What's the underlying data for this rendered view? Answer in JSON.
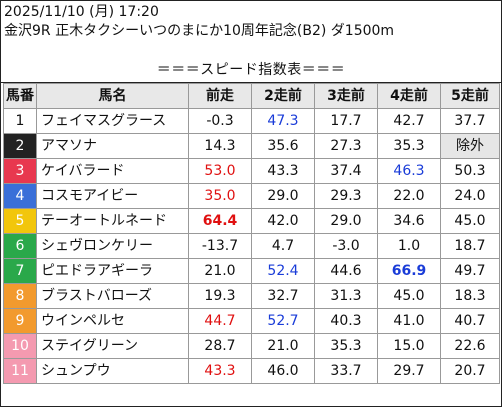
{
  "header": {
    "datetime": "2025/11/10 (月) 17:20",
    "race": "金沢9R 正木タクシーいつのまにか10周年記念(B2) ダ1500m"
  },
  "subtitle": "＝＝＝スピード指数表＝＝＝",
  "columns": [
    "馬番",
    "馬名",
    "前走",
    "2走前",
    "3走前",
    "4走前",
    "5走前"
  ],
  "rows": [
    {
      "num": "1",
      "color": "#ffffff",
      "text": "#111111",
      "name": "フェイマスグラース",
      "v": [
        [
          "-0.3",
          ""
        ],
        [
          "47.3",
          "blue"
        ],
        [
          "17.7",
          ""
        ],
        [
          "42.7",
          ""
        ],
        [
          "37.7",
          ""
        ]
      ]
    },
    {
      "num": "2",
      "color": "#222222",
      "text": "#ffffff",
      "name": "アマソナ",
      "v": [
        [
          "14.3",
          ""
        ],
        [
          "35.6",
          ""
        ],
        [
          "27.3",
          ""
        ],
        [
          "35.3",
          ""
        ],
        [
          "除外",
          "grey"
        ]
      ]
    },
    {
      "num": "3",
      "color": "#e8384f",
      "text": "#ffffff",
      "name": "ケイバラード",
      "v": [
        [
          "53.0",
          "red"
        ],
        [
          "43.3",
          ""
        ],
        [
          "37.4",
          ""
        ],
        [
          "46.3",
          "blue"
        ],
        [
          "50.3",
          ""
        ]
      ]
    },
    {
      "num": "4",
      "color": "#3a6fd8",
      "text": "#ffffff",
      "name": "コスモアイビー",
      "v": [
        [
          "35.0",
          "red"
        ],
        [
          "29.0",
          ""
        ],
        [
          "29.3",
          ""
        ],
        [
          "22.0",
          ""
        ],
        [
          "24.0",
          ""
        ]
      ]
    },
    {
      "num": "5",
      "color": "#f2c60c",
      "text": "#ffffff",
      "name": "テーオートルネード",
      "v": [
        [
          "64.4",
          "boldr"
        ],
        [
          "42.0",
          ""
        ],
        [
          "29.0",
          ""
        ],
        [
          "34.6",
          ""
        ],
        [
          "45.0",
          ""
        ]
      ]
    },
    {
      "num": "6",
      "color": "#2aa84a",
      "text": "#ffffff",
      "name": "シェヴロンケリー",
      "v": [
        [
          "-13.7",
          ""
        ],
        [
          "4.7",
          ""
        ],
        [
          "-3.0",
          ""
        ],
        [
          "1.0",
          ""
        ],
        [
          "18.7",
          ""
        ]
      ]
    },
    {
      "num": "7",
      "color": "#2aa84a",
      "text": "#ffffff",
      "name": "ピエドラアギーラ",
      "v": [
        [
          "21.0",
          ""
        ],
        [
          "52.4",
          "blue"
        ],
        [
          "44.6",
          ""
        ],
        [
          "66.9",
          "boldb"
        ],
        [
          "49.7",
          ""
        ]
      ]
    },
    {
      "num": "8",
      "color": "#f29a2e",
      "text": "#ffffff",
      "name": "ブラストバローズ",
      "v": [
        [
          "19.3",
          ""
        ],
        [
          "32.7",
          ""
        ],
        [
          "31.3",
          ""
        ],
        [
          "45.0",
          ""
        ],
        [
          "18.3",
          ""
        ]
      ]
    },
    {
      "num": "9",
      "color": "#f29a2e",
      "text": "#ffffff",
      "name": "ウインペルセ",
      "v": [
        [
          "44.7",
          "red"
        ],
        [
          "52.7",
          "blue"
        ],
        [
          "40.3",
          ""
        ],
        [
          "41.0",
          ""
        ],
        [
          "40.7",
          ""
        ]
      ]
    },
    {
      "num": "10",
      "color": "#f49ab0",
      "text": "#ffffff",
      "name": "ステイグリーン",
      "v": [
        [
          "28.7",
          ""
        ],
        [
          "21.0",
          ""
        ],
        [
          "35.3",
          ""
        ],
        [
          "15.0",
          ""
        ],
        [
          "22.6",
          ""
        ]
      ]
    },
    {
      "num": "11",
      "color": "#f49ab0",
      "text": "#ffffff",
      "name": "シュンプウ",
      "v": [
        [
          "43.3",
          "red"
        ],
        [
          "46.0",
          ""
        ],
        [
          "33.7",
          ""
        ],
        [
          "29.7",
          ""
        ],
        [
          "20.7",
          ""
        ]
      ]
    }
  ]
}
